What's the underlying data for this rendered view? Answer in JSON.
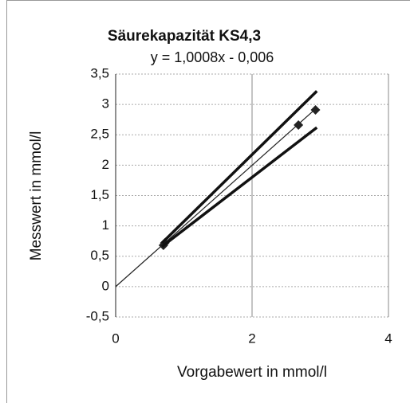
{
  "chart_data": {
    "type": "scatter",
    "title": "Säurekapazität KS4,3",
    "subtitle": "y = 1,0008x - 0,006",
    "xlabel": "Vorgabewert in mmol/l",
    "ylabel": "Messwert in mmol/l",
    "xlim": [
      0,
      4
    ],
    "ylim": [
      -0.5,
      3.5
    ],
    "xticks": [
      0,
      2,
      4
    ],
    "yticks": [
      {
        "value": -0.5,
        "label": "-0,5"
      },
      0,
      {
        "value": 0.5,
        "label": "0,5"
      },
      1,
      {
        "value": 1.5,
        "label": "1,5"
      },
      2,
      {
        "value": 2.5,
        "label": "2,5"
      },
      3,
      {
        "value": 3.5,
        "label": "3,5"
      }
    ],
    "grid": true,
    "series": [
      {
        "color": "#222222",
        "marker": "diamond",
        "line_width": 0,
        "x": [
          0.7,
          0.72,
          2.68,
          2.93
        ],
        "values": [
          0.68,
          0.72,
          2.66,
          2.91
        ]
      },
      {
        "color": "#222222",
        "marker": "none",
        "line_width": 1.2,
        "x": [
          0,
          2.93
        ],
        "values": [
          0,
          2.926
        ]
      },
      {
        "color": "#111111",
        "marker": "none",
        "line_width": 3.5,
        "x": [
          0.68,
          2.95
        ],
        "values": [
          0.72,
          3.22
        ]
      },
      {
        "color": "#111111",
        "marker": "none",
        "line_width": 3.5,
        "x": [
          0.68,
          2.95
        ],
        "values": [
          0.66,
          2.62
        ]
      }
    ]
  }
}
